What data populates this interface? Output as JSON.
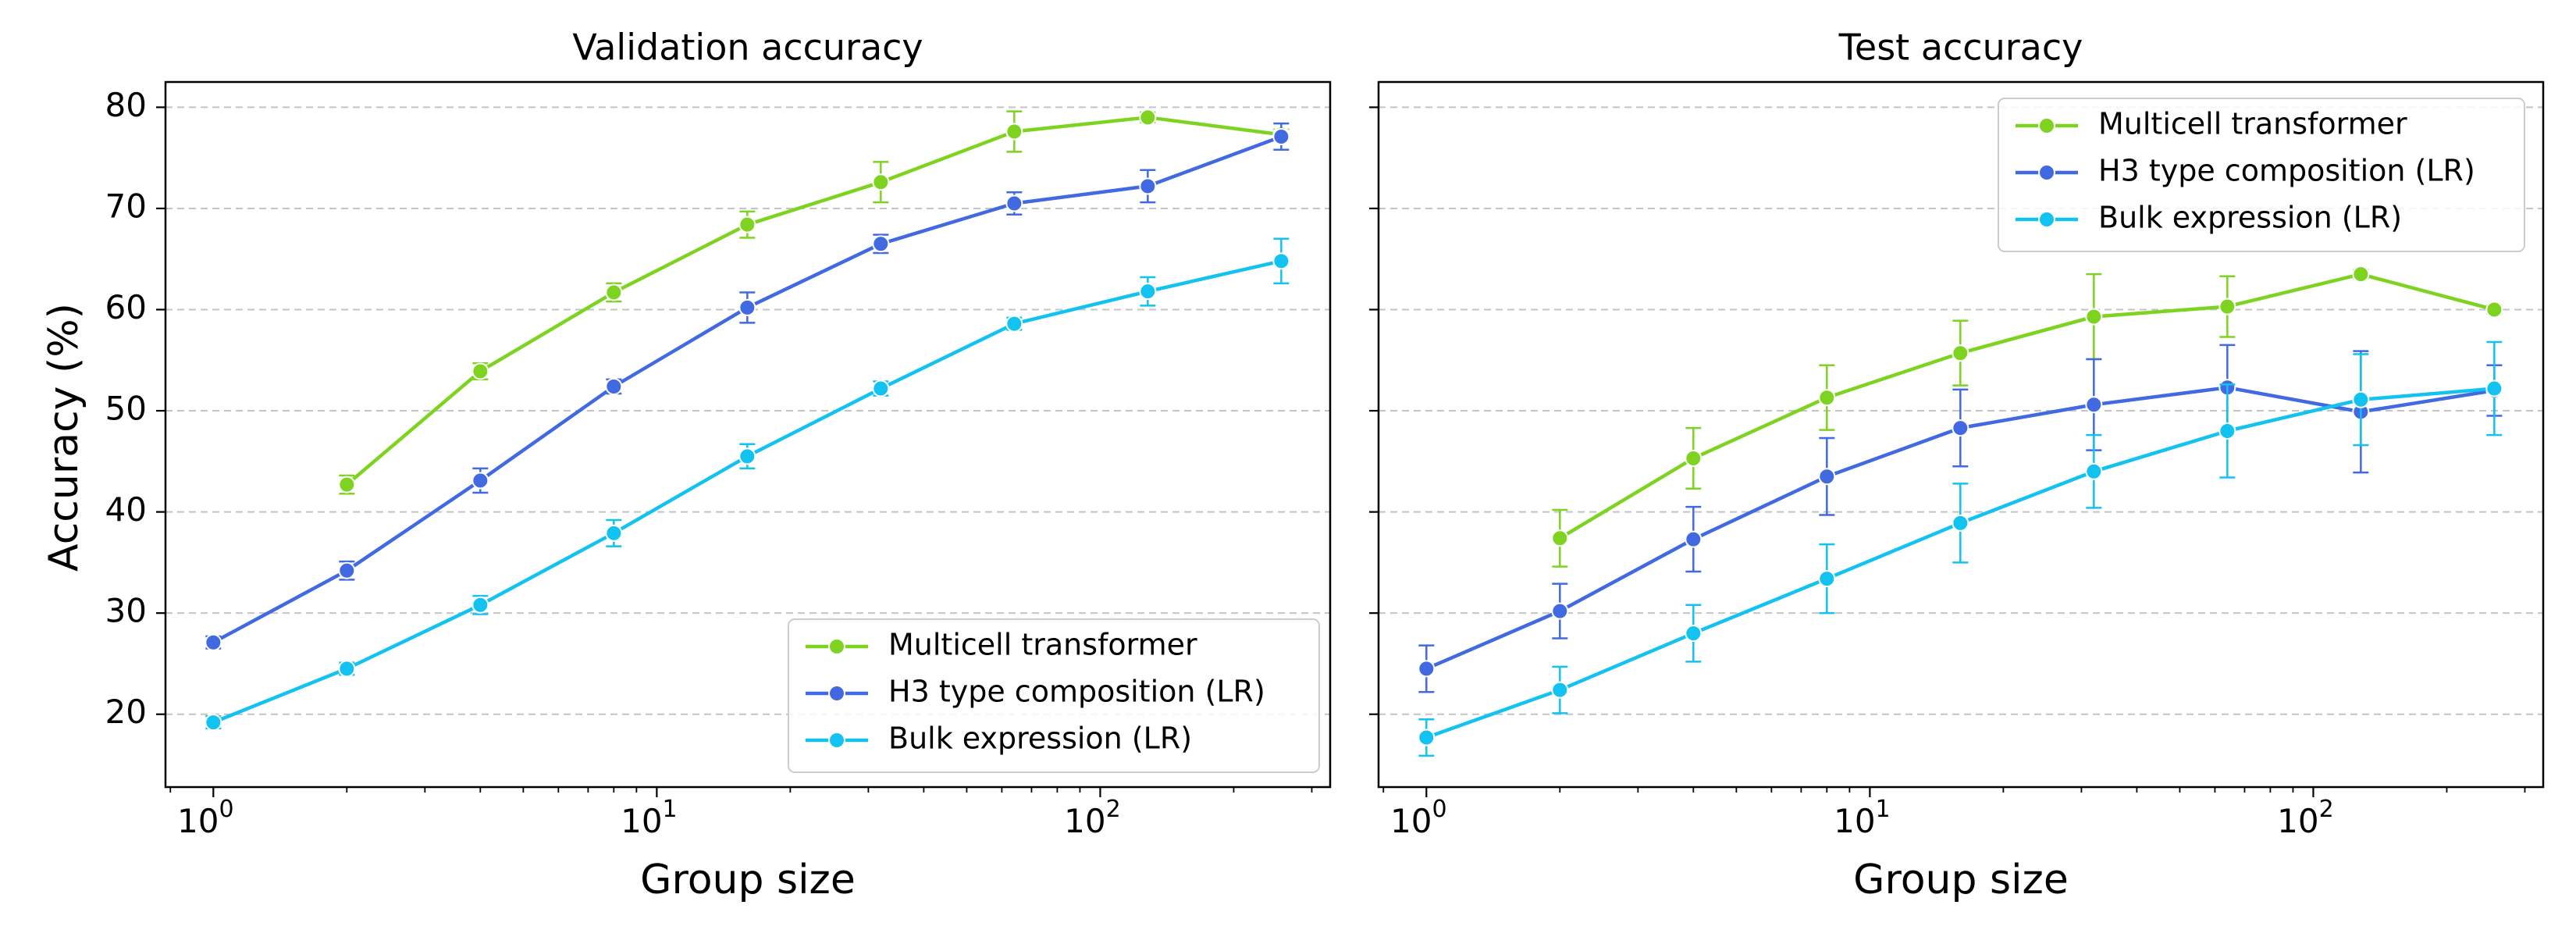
{
  "figure": {
    "ylabel": "Accuracy (%)"
  },
  "series_styles": [
    {
      "name": "Multicell transformer",
      "color": "#7ed321"
    },
    {
      "name": "H3 type composition (LR)",
      "color": "#4169e1"
    },
    {
      "name": "Bulk expression (LR)",
      "color": "#12c2f0"
    }
  ],
  "chart_data": [
    {
      "type": "line",
      "title": "Validation accuracy",
      "xlabel": "Group size",
      "ylabel": "Accuracy (%)",
      "xscale": "log",
      "xlim": [
        0.78,
        330
      ],
      "ylim": [
        12.8,
        82.5
      ],
      "yticks": [
        20,
        30,
        40,
        50,
        60,
        70,
        80
      ],
      "xticks": [
        1,
        10,
        100
      ],
      "xtick_labels": [
        {
          "base": "10",
          "exp": "0"
        },
        {
          "base": "10",
          "exp": "1"
        },
        {
          "base": "10",
          "exp": "2"
        }
      ],
      "grid": "y-dashed",
      "legend_position": "lower right",
      "series": [
        {
          "name": "Multicell transformer",
          "x": [
            2,
            4,
            8,
            16,
            32,
            64,
            128,
            256
          ],
          "y": [
            42.7,
            53.9,
            61.7,
            68.4,
            72.6,
            77.6,
            79.0,
            77.3
          ],
          "err": [
            0.9,
            0.8,
            0.9,
            1.3,
            2.0,
            2.0,
            0.5,
            0.5
          ]
        },
        {
          "name": "H3 type composition (LR)",
          "x": [
            1,
            2,
            4,
            8,
            16,
            32,
            64,
            128,
            256
          ],
          "y": [
            27.1,
            34.2,
            43.1,
            52.4,
            60.2,
            66.5,
            70.5,
            72.2,
            77.1
          ],
          "err": [
            0.6,
            0.9,
            1.2,
            0.7,
            1.5,
            0.9,
            1.1,
            1.6,
            1.3
          ]
        },
        {
          "name": "Bulk expression (LR)",
          "x": [
            1,
            2,
            4,
            8,
            16,
            32,
            64,
            128,
            256
          ],
          "y": [
            19.2,
            24.5,
            30.8,
            37.9,
            45.5,
            52.2,
            58.6,
            61.8,
            64.8
          ],
          "err": [
            0.6,
            0.6,
            0.9,
            1.3,
            1.2,
            0.7,
            0.6,
            1.4,
            2.2
          ]
        }
      ]
    },
    {
      "type": "line",
      "title": "Test accuracy",
      "xlabel": "Group size",
      "ylabel": "",
      "xscale": "log",
      "xlim": [
        0.78,
        330
      ],
      "ylim": [
        12.8,
        82.5
      ],
      "yticks": [
        20,
        30,
        40,
        50,
        60,
        70,
        80
      ],
      "xticks": [
        1,
        10,
        100
      ],
      "xtick_labels": [
        {
          "base": "10",
          "exp": "0"
        },
        {
          "base": "10",
          "exp": "1"
        },
        {
          "base": "10",
          "exp": "2"
        }
      ],
      "grid": "y-dashed",
      "legend_position": "upper right",
      "series": [
        {
          "name": "Multicell transformer",
          "x": [
            2,
            4,
            8,
            16,
            32,
            64,
            128,
            256
          ],
          "y": [
            37.4,
            45.3,
            51.3,
            55.7,
            59.3,
            60.3,
            63.5,
            60.0
          ],
          "err": [
            2.8,
            3.0,
            3.2,
            3.2,
            4.2,
            3.0,
            0.4,
            0.4
          ]
        },
        {
          "name": "H3 type composition (LR)",
          "x": [
            1,
            2,
            4,
            8,
            16,
            32,
            64,
            128,
            256
          ],
          "y": [
            24.5,
            30.2,
            37.3,
            43.5,
            48.3,
            50.6,
            52.3,
            49.9,
            52.0
          ],
          "err": [
            2.3,
            2.7,
            3.2,
            3.8,
            3.8,
            4.5,
            4.2,
            6.0,
            2.5
          ]
        },
        {
          "name": "Bulk expression (LR)",
          "x": [
            1,
            2,
            4,
            8,
            16,
            32,
            64,
            128,
            256
          ],
          "y": [
            17.7,
            22.4,
            28.0,
            33.4,
            38.9,
            44.0,
            48.0,
            51.1,
            52.2
          ],
          "err": [
            1.8,
            2.3,
            2.8,
            3.4,
            3.9,
            3.6,
            4.6,
            4.5,
            4.6
          ]
        }
      ]
    }
  ]
}
